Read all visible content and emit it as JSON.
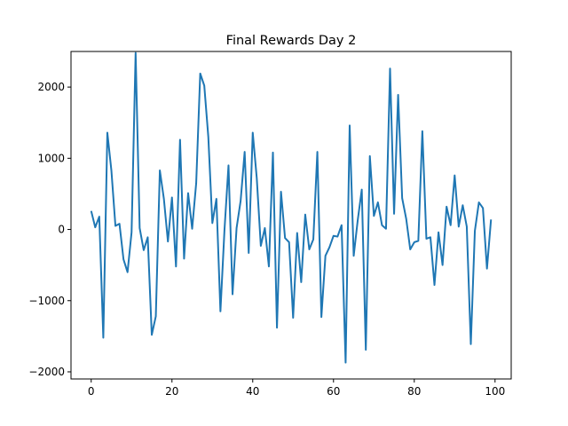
{
  "chart_data": {
    "type": "line",
    "title": "Final Rewards Day 2",
    "xlabel": "",
    "ylabel": "",
    "xlim": [
      -5,
      104
    ],
    "ylim": [
      -2100,
      2500
    ],
    "grid": false,
    "xticks": [
      0,
      20,
      40,
      60,
      80,
      100
    ],
    "yticks": [
      -2000,
      -1000,
      0,
      1000,
      2000
    ],
    "series": [
      {
        "color": "#1f77b4",
        "x": [
          0,
          1,
          2,
          3,
          4,
          5,
          6,
          7,
          8,
          9,
          10,
          11,
          12,
          13,
          14,
          15,
          16,
          17,
          18,
          19,
          20,
          21,
          22,
          23,
          24,
          25,
          26,
          27,
          28,
          29,
          30,
          31,
          32,
          33,
          34,
          35,
          36,
          37,
          38,
          39,
          40,
          41,
          42,
          43,
          44,
          45,
          46,
          47,
          48,
          49,
          50,
          51,
          52,
          53,
          54,
          55,
          56,
          57,
          58,
          59,
          60,
          61,
          62,
          63,
          64,
          65,
          66,
          67,
          68,
          69,
          70,
          71,
          72,
          73,
          74,
          75,
          76,
          77,
          78,
          79,
          80,
          81,
          82,
          83,
          84,
          85,
          86,
          87,
          88,
          89,
          90,
          91,
          92,
          93,
          94,
          95,
          96,
          97,
          98,
          99
        ],
        "values": [
          260,
          30,
          180,
          -1520,
          1360,
          830,
          50,
          80,
          -420,
          -600,
          -40,
          2480,
          20,
          -290,
          -110,
          -1480,
          -1220,
          830,
          430,
          -170,
          450,
          -520,
          1260,
          -410,
          510,
          10,
          650,
          2190,
          2020,
          1300,
          90,
          430,
          -1150,
          -10,
          900,
          -910,
          20,
          400,
          1090,
          -330,
          1360,
          720,
          -230,
          20,
          -520,
          1080,
          -1380,
          530,
          -120,
          -180,
          -1240,
          -50,
          -740,
          210,
          -280,
          -140,
          1090,
          -1230,
          -370,
          -250,
          -90,
          -100,
          60,
          -1870,
          1460,
          -370,
          130,
          560,
          -1690,
          1030,
          190,
          380,
          60,
          10,
          2260,
          220,
          1890,
          440,
          150,
          -280,
          -180,
          -160,
          1380,
          -130,
          -110,
          -780,
          -40,
          -500,
          320,
          60,
          760,
          40,
          340,
          40,
          -1610,
          -20,
          380,
          300,
          -550,
          140
        ]
      }
    ]
  }
}
